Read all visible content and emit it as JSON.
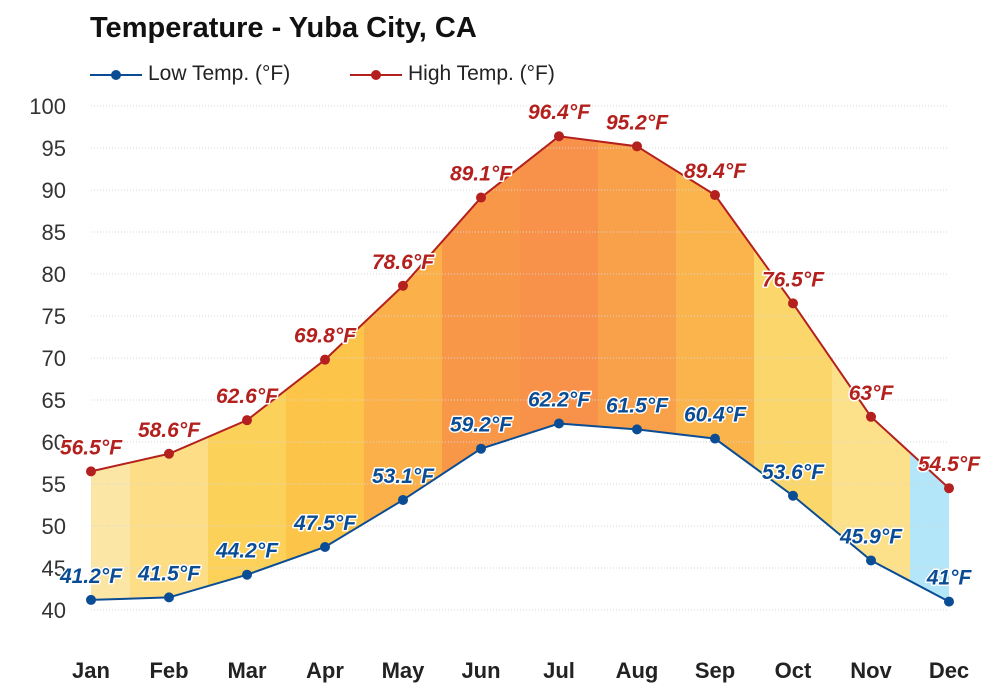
{
  "chart_data": {
    "type": "line",
    "title": "Temperature - Yuba City, CA",
    "categories": [
      "Jan",
      "Feb",
      "Mar",
      "Apr",
      "May",
      "Jun",
      "Jul",
      "Aug",
      "Sep",
      "Oct",
      "Nov",
      "Dec"
    ],
    "series": [
      {
        "name": "Low Temp. (°F)",
        "color": "#0b4d94",
        "values": [
          41.2,
          41.5,
          44.2,
          47.5,
          53.1,
          59.2,
          62.2,
          61.5,
          60.4,
          53.6,
          45.9,
          41.0
        ],
        "labels": [
          "41.2°F",
          "41.5°F",
          "44.2°F",
          "47.5°F",
          "53.1°F",
          "59.2°F",
          "62.2°F",
          "61.5°F",
          "60.4°F",
          "53.6°F",
          "45.9°F",
          "41°F"
        ]
      },
      {
        "name": "High Temp. (°F)",
        "color": "#b3201d",
        "values": [
          56.5,
          58.6,
          62.6,
          69.8,
          78.6,
          89.1,
          96.4,
          95.2,
          89.4,
          76.5,
          63.0,
          54.5
        ],
        "labels": [
          "56.5°F",
          "58.6°F",
          "62.6°F",
          "69.8°F",
          "78.6°F",
          "89.1°F",
          "96.4°F",
          "95.2°F",
          "89.4°F",
          "76.5°F",
          "63°F",
          "54.5°F"
        ]
      }
    ],
    "band_colors": [
      "#fbe6a6",
      "#fdde86",
      "#fcd15a",
      "#fcc54a",
      "#fbb04a",
      "#f99748",
      "#f8924a",
      "#f9a14a",
      "#fbb44c",
      "#fbd66b",
      "#fde08a",
      "#b3e6f8"
    ],
    "ylim": [
      40,
      100
    ],
    "yticks": [
      40,
      45,
      50,
      55,
      60,
      65,
      70,
      75,
      80,
      85,
      90,
      95,
      100
    ],
    "grid": true,
    "legend_position": "top-left"
  }
}
